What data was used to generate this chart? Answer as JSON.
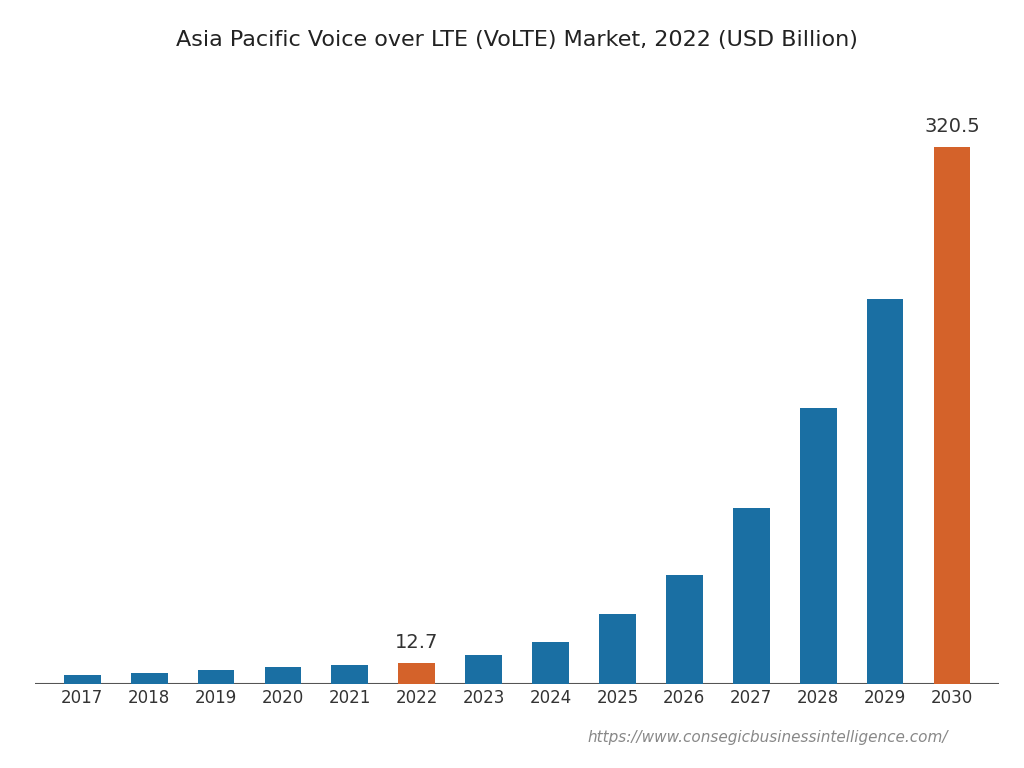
{
  "title": "Asia Pacific Voice over LTE (VoLTE) Market, 2022 (USD Billion)",
  "categories": [
    "2017",
    "2018",
    "2019",
    "2020",
    "2021",
    "2022",
    "2023",
    "2024",
    "2025",
    "2026",
    "2027",
    "2028",
    "2029",
    "2030"
  ],
  "values": [
    5.2,
    6.8,
    8.5,
    10.0,
    11.5,
    12.7,
    17.5,
    25.0,
    42.0,
    65.0,
    105.0,
    165.0,
    230.0,
    320.5
  ],
  "bar_colors": [
    "#1a6fa3",
    "#1a6fa3",
    "#1a6fa3",
    "#1a6fa3",
    "#1a6fa3",
    "#d4622a",
    "#1a6fa3",
    "#1a6fa3",
    "#1a6fa3",
    "#1a6fa3",
    "#1a6fa3",
    "#1a6fa3",
    "#1a6fa3",
    "#d4622a"
  ],
  "annotated_bars": [
    5,
    13
  ],
  "annotations": [
    "12.7",
    "320.5"
  ],
  "ylim": [
    0,
    360
  ],
  "background_color": "#ffffff",
  "title_fontsize": 16,
  "tick_fontsize": 12,
  "annotation_fontsize": 14,
  "url_text": "https://www.consegicbusinessintelligence.com/",
  "url_fontsize": 11,
  "bar_width": 0.55
}
